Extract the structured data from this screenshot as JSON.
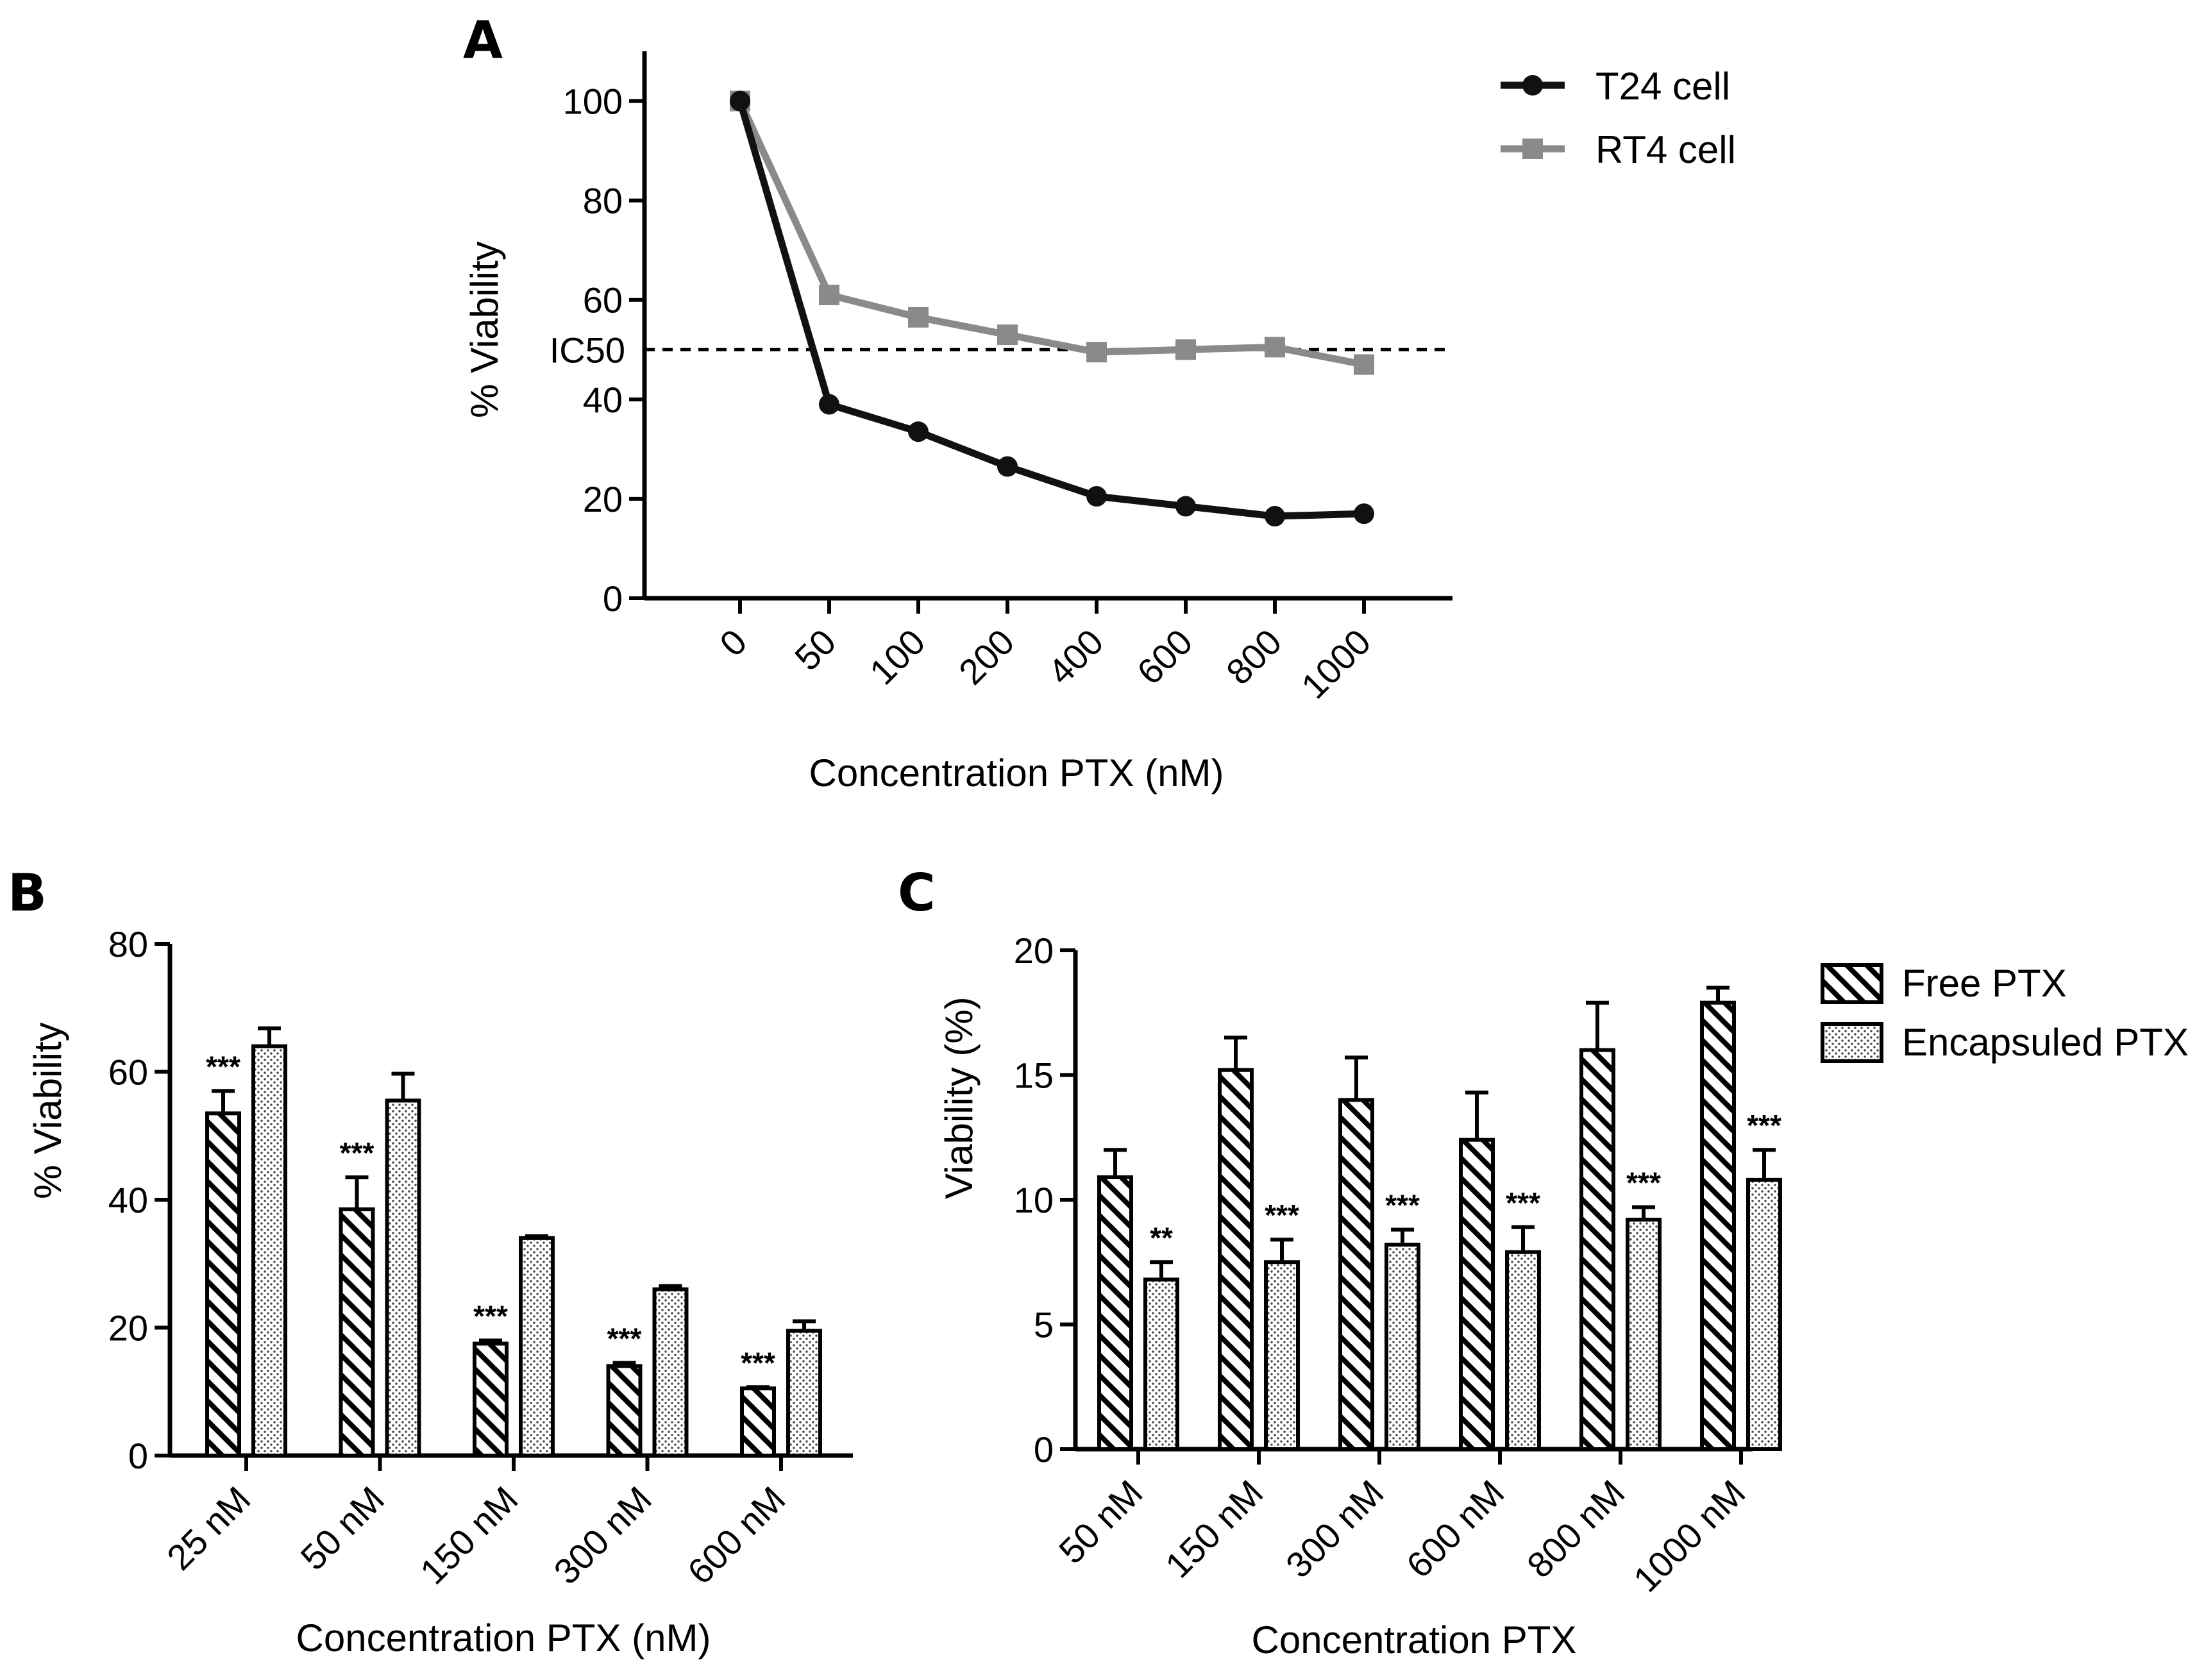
{
  "chart_data": [
    {
      "panel": "A",
      "type": "line",
      "categories": [
        "0",
        "50",
        "100",
        "200",
        "400",
        "600",
        "800",
        "1000"
      ],
      "series": [
        {
          "name": "T24 cell",
          "color": "#111111",
          "marker": "circle",
          "values": [
            100,
            39,
            33.5,
            26.5,
            20.5,
            18.5,
            16.5,
            17
          ]
        },
        {
          "name": "RT4 cell",
          "color": "#8a8a8a",
          "marker": "square",
          "values": [
            100,
            61,
            56.5,
            53,
            49.5,
            50,
            50.5,
            47
          ]
        }
      ],
      "reference_line": {
        "y": 50,
        "label": "IC50",
        "style": "dashed"
      },
      "xlabel": "Concentration PTX (nM)",
      "ylabel": "% Viability",
      "yticks": [
        "0",
        "20",
        "40",
        "60",
        "80",
        "100"
      ],
      "ylim": [
        0,
        110
      ],
      "legend": "top-right",
      "grid": false
    },
    {
      "panel": "B",
      "type": "bar",
      "categories": [
        "25 nM",
        "50 nM",
        "150 nM",
        "300 nM",
        "600 nM"
      ],
      "series": [
        {
          "fill": "hatched",
          "values": [
            53.5,
            38.5,
            17.5,
            14,
            10.5
          ],
          "errors": [
            3.5,
            5,
            0.5,
            0.5,
            0.2
          ],
          "significance": [
            "***",
            "***",
            "***",
            "***",
            "***"
          ]
        },
        {
          "fill": "dotted",
          "values": [
            64,
            55.5,
            34,
            26,
            19.5
          ],
          "errors": [
            2.8,
            4.2,
            0.3,
            0.5,
            1.5
          ],
          "significance": [
            "",
            "",
            "",
            "",
            ""
          ]
        }
      ],
      "xlabel": "Concentration PTX (nM)",
      "ylabel": "% Viability",
      "yticks": [
        "0",
        "20",
        "40",
        "60",
        "80"
      ],
      "ylim": [
        0,
        80
      ],
      "grid": false
    },
    {
      "panel": "C",
      "type": "bar",
      "categories": [
        "50 nM",
        "150 nM",
        "300 nM",
        "600 nM",
        "800 nM",
        "1000 nM"
      ],
      "series": [
        {
          "name": "Free PTX",
          "fill": "hatched",
          "values": [
            10.9,
            15.2,
            14,
            12.4,
            16,
            17.9
          ],
          "errors": [
            1.1,
            1.3,
            1.7,
            1.9,
            1.9,
            0.6
          ],
          "significance": [
            "",
            "",
            "",
            "",
            "",
            ""
          ]
        },
        {
          "name": "Encapsuled PTX",
          "fill": "dotted",
          "values": [
            6.8,
            7.5,
            8.2,
            7.9,
            9.2,
            10.8
          ],
          "errors": [
            0.7,
            0.9,
            0.6,
            1.0,
            0.5,
            1.2
          ],
          "significance": [
            "**",
            "***",
            "***",
            "***",
            "***",
            "***"
          ]
        }
      ],
      "xlabel": "Concentration PTX",
      "ylabel": "Viability (%)",
      "yticks": [
        "0",
        "5",
        "10",
        "15",
        "20"
      ],
      "ylim": [
        0,
        20
      ],
      "legend": "top-right",
      "grid": false
    }
  ]
}
